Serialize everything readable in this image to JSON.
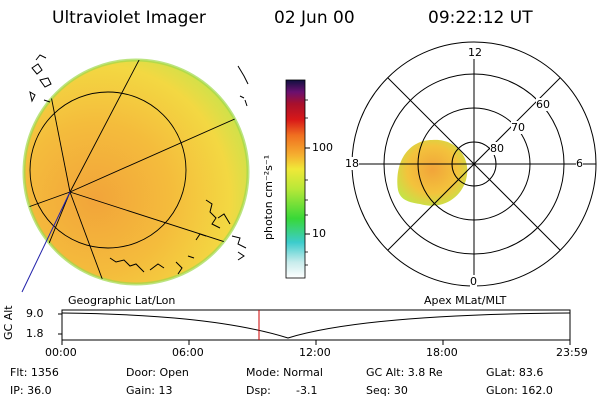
{
  "header": {
    "title": "Ultraviolet Imager",
    "date": "02 Jun 00",
    "time": "09:22:12 UT"
  },
  "colorbar": {
    "unit_label": "photon cm⁻²s⁻¹",
    "ticks": [
      "100",
      "10"
    ]
  },
  "polar_plot": {
    "mlt_labels": [
      "12",
      "18",
      "6",
      "0"
    ],
    "lat_labels": [
      "60",
      "70",
      "80"
    ]
  },
  "timeline": {
    "left_label": "Geographic Lat/Lon",
    "right_label": "Apex MLat/MLT",
    "y_axis_label": "GC Alt",
    "y_ticks": [
      "9.0",
      "1.8"
    ],
    "x_ticks": [
      "00:00",
      "06:00",
      "12:00",
      "18:00",
      "23:59"
    ]
  },
  "info": {
    "flt": "Flt: 1356",
    "ip": "IP: 36.0",
    "door": "Door: Open",
    "gain": "Gain: 13",
    "mode": "Mode: Normal",
    "dsp_label": "Dsp:",
    "dsp_value": "-3.1",
    "gc_alt": "GC Alt: 3.8 Re",
    "seq": "Seq: 30",
    "glat": "GLat: 83.6",
    "glon": "GLon: 162.0"
  },
  "colors": {
    "disk_base": "#f2d23a",
    "disk_orange": "#f2a43a",
    "disk_edge": "#b8e04a",
    "marker_line": "#cc0000",
    "track_line": "#2222aa"
  }
}
